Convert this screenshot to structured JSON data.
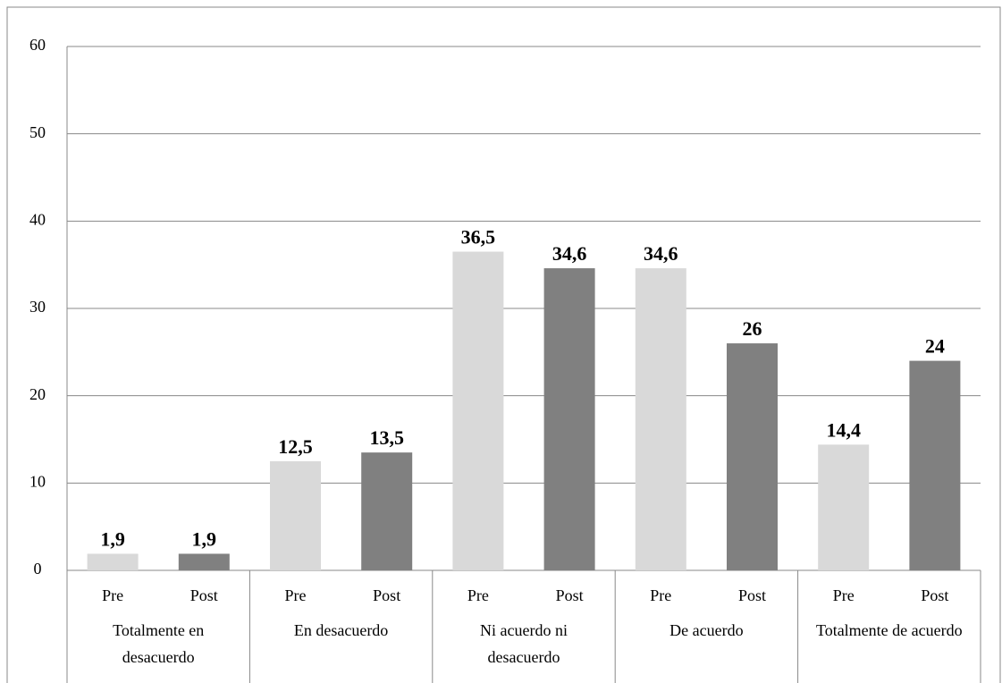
{
  "chart_data": {
    "type": "bar",
    "categories": [
      "Totalmente en desacuerdo",
      "En desacuerdo",
      "Ni acuerdo ni desacuerdo",
      "De acuerdo",
      "Totalmente de acuerdo"
    ],
    "series": [
      {
        "name": "Pre",
        "color": "#d9d9d9",
        "values": [
          1.9,
          12.5,
          36.5,
          34.6,
          14.4
        ],
        "value_labels": [
          "1,9",
          "12,5",
          "36,5",
          "34,6",
          "14,4"
        ]
      },
      {
        "name": "Post",
        "color": "#808080",
        "values": [
          1.9,
          13.5,
          34.6,
          26,
          24
        ],
        "value_labels": [
          "1,9",
          "13,5",
          "34,6",
          "26",
          "24"
        ]
      }
    ],
    "ylim": [
      0,
      60
    ],
    "yticks": [
      0,
      10,
      20,
      30,
      40,
      50,
      60
    ],
    "grid": true
  }
}
